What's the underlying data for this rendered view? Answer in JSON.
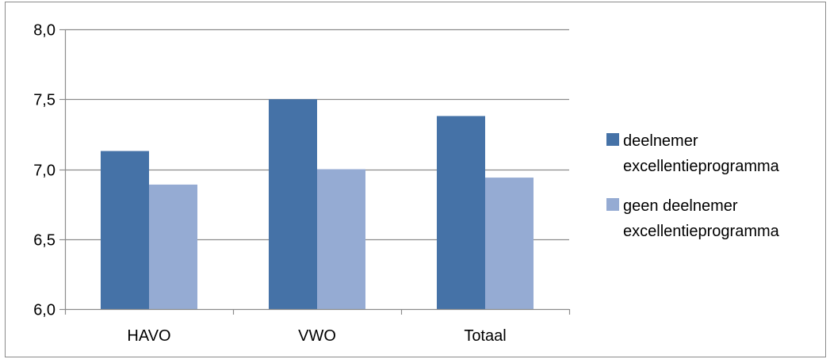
{
  "chart_data": {
    "type": "bar",
    "categories": [
      "HAVO",
      "VWO",
      "Totaal"
    ],
    "series": [
      {
        "name": "deelnemer excellentieprogramma",
        "values": [
          7.13,
          7.5,
          7.38
        ],
        "color": "#4572A7",
        "legend_lines": [
          "deelnemer",
          "excellentieprogramma"
        ]
      },
      {
        "name": "geen deelnemer excellentieprogramma",
        "values": [
          6.89,
          7.0,
          6.94
        ],
        "color": "#95ABD3",
        "legend_lines": [
          "geen deelnemer",
          "excellentieprogramma"
        ]
      }
    ],
    "ylim": [
      6.0,
      8.0
    ],
    "yticks": [
      "6,0",
      "6,5",
      "7,0",
      "7,5",
      "8,0"
    ],
    "ytick_values": [
      6.0,
      6.5,
      7.0,
      7.5,
      8.0
    ],
    "grid": true,
    "legend_position": "right",
    "title": "",
    "xlabel": "",
    "ylabel": ""
  }
}
